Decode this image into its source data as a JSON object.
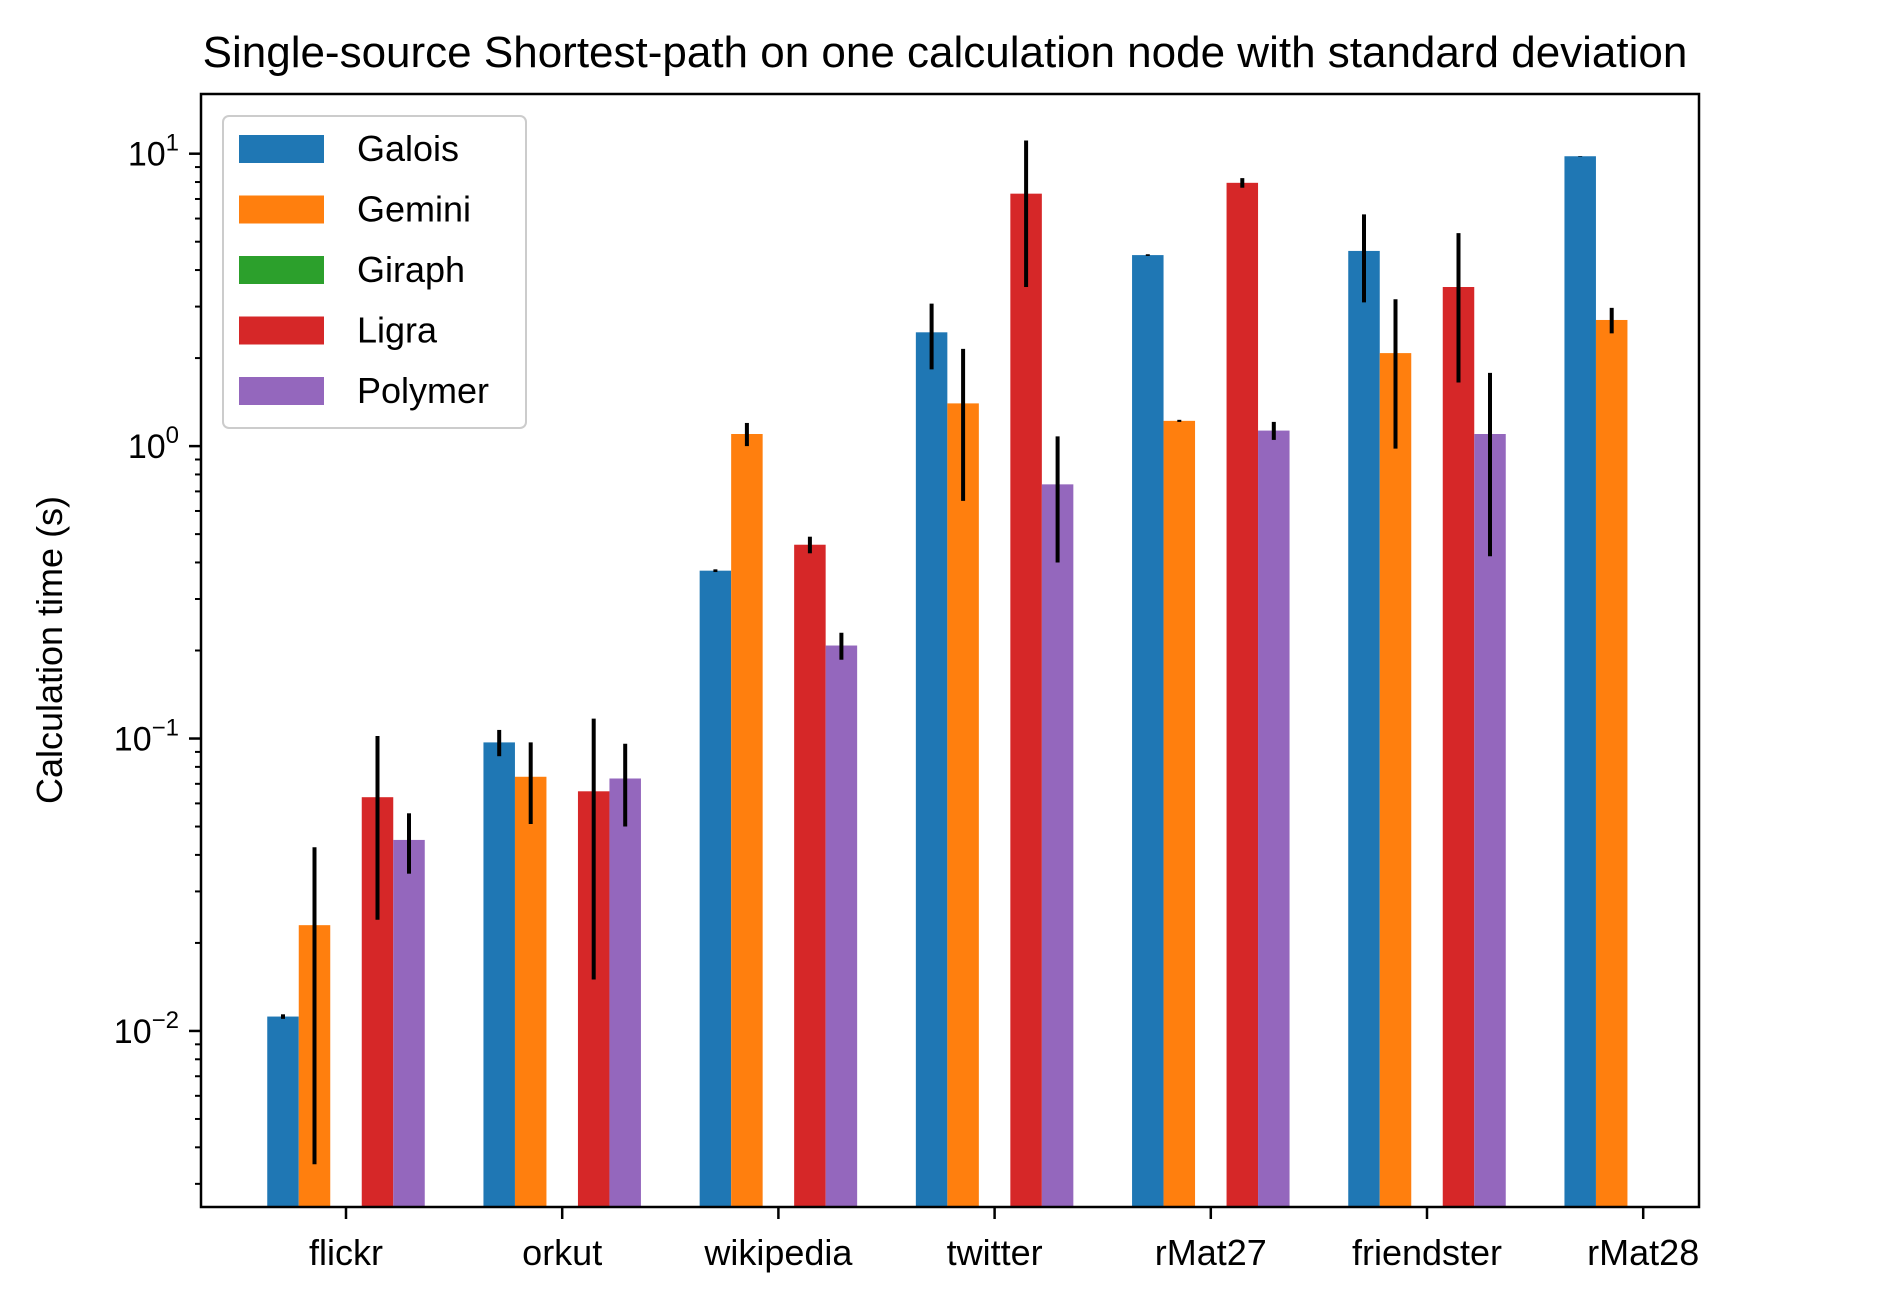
{
  "chart_data": {
    "type": "bar",
    "title": "Single-source Shortest-path on one calculation node with standard deviation",
    "xlabel": "",
    "ylabel": "Calculation time (s)",
    "yscale": "log",
    "ylim": [
      0.0025,
      16
    ],
    "yticks": [
      {
        "value": 0.01,
        "base": "10",
        "exp": "−2"
      },
      {
        "value": 0.1,
        "base": "10",
        "exp": "−1"
      },
      {
        "value": 1,
        "base": "10",
        "exp": "0"
      },
      {
        "value": 10,
        "base": "10",
        "exp": "1"
      }
    ],
    "categories": [
      "flickr",
      "orkut",
      "wikipedia",
      "twitter",
      "rMat27",
      "friendster",
      "rMat28"
    ],
    "legend_position": "upper-left",
    "grid": false,
    "error_color": "#000000",
    "series": [
      {
        "name": "Galois",
        "color": "#1f77b4",
        "values": [
          0.0112,
          0.097,
          0.375,
          2.45,
          4.5,
          4.65,
          9.8
        ],
        "errors": [
          0.0002,
          0.01,
          0.004,
          0.62,
          0.03,
          1.55,
          0.02
        ]
      },
      {
        "name": "Gemini",
        "color": "#ff7f0e",
        "values": [
          0.023,
          0.074,
          1.1,
          1.4,
          1.22,
          2.08,
          2.7
        ],
        "errors": [
          0.0195,
          0.023,
          0.1,
          0.75,
          0.01,
          1.1,
          0.27
        ]
      },
      {
        "name": "Giraph",
        "color": "#2ca02c",
        "values": [
          null,
          null,
          null,
          null,
          null,
          null,
          null
        ],
        "errors": [
          null,
          null,
          null,
          null,
          null,
          null,
          null
        ]
      },
      {
        "name": "Ligra",
        "color": "#d62728",
        "values": [
          0.063,
          0.066,
          0.46,
          7.3,
          7.95,
          3.5,
          null
        ],
        "errors": [
          0.039,
          0.051,
          0.03,
          3.8,
          0.3,
          1.85,
          null
        ]
      },
      {
        "name": "Polymer",
        "color": "#9467bd",
        "values": [
          0.045,
          0.073,
          0.208,
          0.74,
          1.13,
          1.1,
          null
        ],
        "errors": [
          0.0105,
          0.023,
          0.022,
          0.34,
          0.08,
          0.68,
          null
        ]
      }
    ]
  }
}
